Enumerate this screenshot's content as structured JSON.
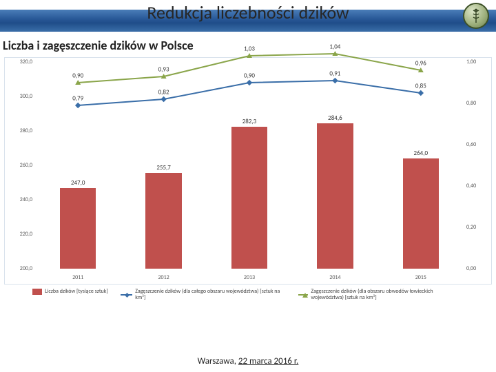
{
  "header": {
    "title": "Redukcja liczebności dzików"
  },
  "subtitle": "Liczba i zagęszczenie dzików w Polsce",
  "footer": {
    "place": "Warszawa,",
    "date": "22 marca 2016 r."
  },
  "chart": {
    "type": "bar+line",
    "background_color": "#ffffff",
    "border_color": "#d9e2ec",
    "categories": [
      "2011",
      "2012",
      "2013",
      "2014",
      "2015"
    ],
    "bars": {
      "color": "#c0504d",
      "values": [
        247.0,
        255.7,
        282.3,
        284.6,
        264.0
      ],
      "labels": [
        "247,0",
        "255,7",
        "282,3",
        "284,6",
        "264,0"
      ],
      "width_frac": 0.42
    },
    "line_blue": {
      "color": "#3a6ea8",
      "stroke_width": 2,
      "marker": "diamond",
      "values": [
        0.79,
        0.82,
        0.9,
        0.91,
        0.85
      ],
      "labels": [
        "0,79",
        "0,82",
        "0,90",
        "0,91",
        "0,85"
      ]
    },
    "line_green": {
      "color": "#8aa54a",
      "stroke_width": 2,
      "marker": "triangle",
      "values": [
        0.9,
        0.93,
        1.03,
        1.04,
        0.96
      ],
      "labels": [
        "0,90",
        "0,93",
        "1,03",
        "1,04",
        "0,96"
      ]
    },
    "y_left": {
      "min": 200.0,
      "max": 320.0,
      "step": 20.0,
      "ticks": [
        "200,0",
        "220,0",
        "240,0",
        "260,0",
        "280,0",
        "300,0",
        "320,0"
      ]
    },
    "y_right": {
      "min": 0.0,
      "max": 1.0,
      "step": 0.2,
      "ticks": [
        "0,00",
        "0,20",
        "0,40",
        "0,60",
        "0,80",
        "1,00"
      ]
    },
    "label_fontsize": 8,
    "value_fontsize": 9
  },
  "legend": {
    "bar": "Liczba dzików [tysiące sztuk]",
    "line_blue": "Zagęszczenie dzików (dla całego obszaru województwa) [sztuk na km²]",
    "line_green": "Zagęszczenie dzików (dla obszaru obwodów łowieckich województwa) [sztuk na km²]"
  }
}
